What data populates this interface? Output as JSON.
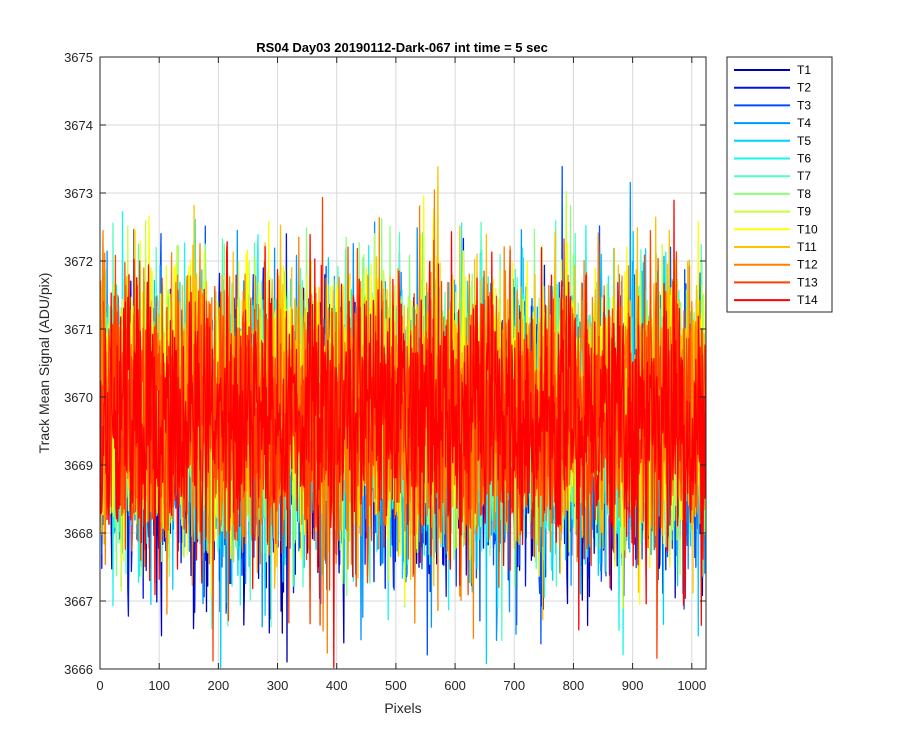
{
  "chart_data": {
    "type": "line",
    "title": "RS04 Day03 20190112-Dark-067 int time = 5 sec",
    "xlabel": "Pixels",
    "ylabel": "Track Mean Signal (ADU/pix)",
    "xlim": [
      0,
      1024
    ],
    "ylim": [
      3666,
      3675
    ],
    "xticks": [
      0,
      100,
      200,
      300,
      400,
      500,
      600,
      700,
      800,
      900,
      1000
    ],
    "yticks": [
      3666,
      3667,
      3668,
      3669,
      3670,
      3671,
      3672,
      3673,
      3674,
      3675
    ],
    "grid": true,
    "legend_position": "outside-top-right",
    "noise_model": {
      "n_points": 1024,
      "mean": 3669.7,
      "noise_std": 1.0
    },
    "series": [
      {
        "name": "T1",
        "color": "#0000b3",
        "mean_offset": -0.45
      },
      {
        "name": "T2",
        "color": "#0014e6",
        "mean_offset": -0.35
      },
      {
        "name": "T3",
        "color": "#0050ff",
        "mean_offset": -0.25
      },
      {
        "name": "T4",
        "color": "#0096ff",
        "mean_offset": -0.15
      },
      {
        "name": "T5",
        "color": "#00d0ff",
        "mean_offset": -0.05
      },
      {
        "name": "T6",
        "color": "#18f5f0",
        "mean_offset": 0.0
      },
      {
        "name": "T7",
        "color": "#50ffc0",
        "mean_offset": 0.05
      },
      {
        "name": "T8",
        "color": "#8cff7a",
        "mean_offset": 0.1
      },
      {
        "name": "T9",
        "color": "#c8ff3a",
        "mean_offset": 0.15
      },
      {
        "name": "T10",
        "color": "#ffff00",
        "mean_offset": 0.2
      },
      {
        "name": "T11",
        "color": "#ffc000",
        "mean_offset": 0.1
      },
      {
        "name": "T12",
        "color": "#ff8000",
        "mean_offset": 0.05
      },
      {
        "name": "T13",
        "color": "#ff4000",
        "mean_offset": 0.0
      },
      {
        "name": "T14",
        "color": "#ff0000",
        "mean_offset": 0.0
      }
    ]
  }
}
